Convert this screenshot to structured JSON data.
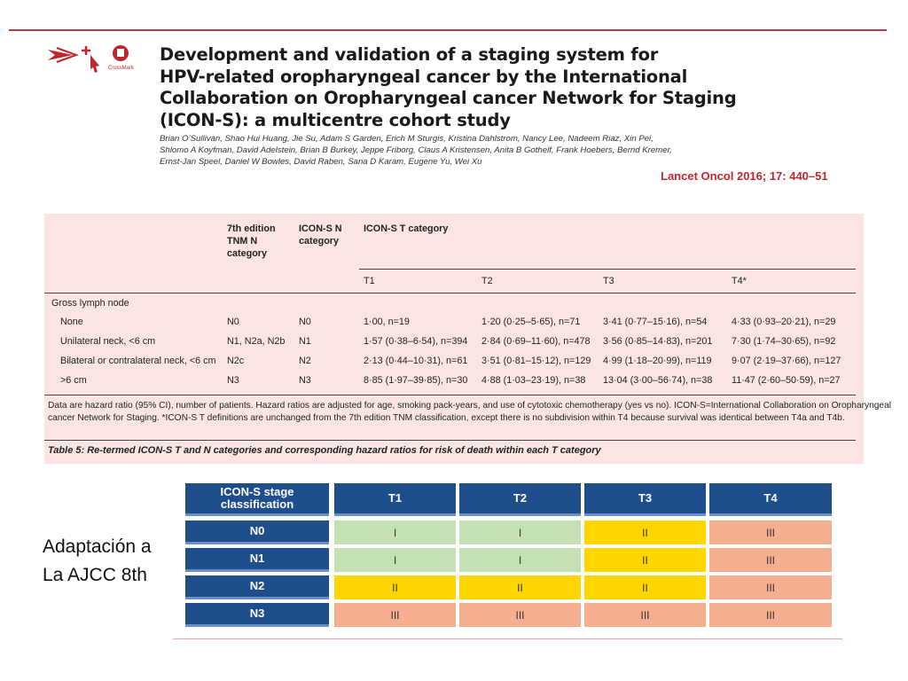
{
  "header": {
    "title": [
      "Development and validation of a staging system for",
      "HPV-related oropharyngeal cancer by the International",
      "Collaboration on Oropharyngeal cancer Network for Staging",
      "(ICON-S): a multicentre cohort study"
    ],
    "logo_label": "CrossMark",
    "authors": [
      "Brian O’Sullivan, Shao Hui Huang, Jie Su, Adam S Garden, Erich M Sturgis, Kristina Dahlstrom, Nancy Lee, Nadeem Riaz, Xin Pei,",
      "Shlomo A Koyfman, David Adelstein, Brian B Burkey, Jeppe Friborg, Claus A Kristensen, Anita B Gothelf, Frank Hoebers, Bernd Kremer,",
      "Ernst-Jan Speel, Daniel W Bowles, David Raben, Sana D Karam, Eugene Yu, Wei Xu"
    ],
    "citation": "Lancet Oncol 2016; 17: 440–51"
  },
  "table": {
    "columns": [
      "",
      "7th edition TNM N category",
      "ICON-S N category",
      "ICON-S T category"
    ],
    "t_columns": [
      "T1",
      "T2",
      "T3",
      "T4*"
    ],
    "group": "Gross lymph node",
    "rows": [
      [
        "None",
        "N0",
        "N0",
        "1·00, n=19",
        "1·20 (0·25–5·65), n=71",
        "3·41 (0·77–15·16), n=54",
        "4·33 (0·93–20·21), n=29"
      ],
      [
        "Unilateral neck, <6 cm",
        "N1, N2a, N2b",
        "N1",
        "1·57 (0·38–6·54), n=394",
        "2·84 (0·69–11·60), n=478",
        "3·56 (0·85–14·83), n=201",
        "7·30 (1·74–30·65), n=92"
      ],
      [
        "Bilateral or contralateral neck, <6 cm",
        "N2c",
        "N2",
        "2·13 (0·44–10·31), n=61",
        "3·51 (0·81–15·12), n=129",
        "4·99 (1·18–20·99), n=119",
        "9·07 (2·19–37·66), n=127"
      ],
      [
        ">6 cm",
        "N3",
        "N3",
        "8·85 (1·97–39·85), n=30",
        "4·88 (1·03–23·19), n=38",
        "13·04 (3·00–56·74), n=38",
        "11·47 (2·60–50·59), n=27"
      ]
    ],
    "footnote": [
      "Data are hazard ratio (95% CI), number of patients. Hazard ratios are adjusted for age, smoking pack-years, and use of cytotoxic chemotherapy (yes vs no). ICON-S=International Collaboration on Oropharyngeal",
      "cancer Network for Staging. *ICON-S T definitions are unchanged from the 7th edition TNM classification, except there is no subdivision within T4 because survival was identical between T4a and T4b."
    ],
    "caption": "Table 5: Re-termed ICON-S T and N categories and corresponding hazard ratios for risk of death within each T category"
  },
  "side_label": [
    "Adaptación a",
    "La AJCC 8th"
  ],
  "staging": {
    "header": [
      "ICON-S stage classification",
      "T1",
      "T2",
      "T3",
      "T4"
    ],
    "rows": [
      [
        "N0",
        "I",
        "I",
        "II",
        "III"
      ],
      [
        "N1",
        "I",
        "I",
        "II",
        "III"
      ],
      [
        "N2",
        "II",
        "II",
        "II",
        "III"
      ],
      [
        "N3",
        "III",
        "III",
        "III",
        "III"
      ]
    ]
  }
}
